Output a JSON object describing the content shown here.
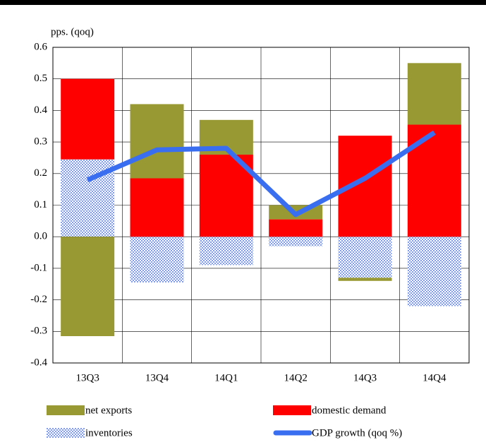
{
  "chart_data": {
    "type": "bar",
    "stacked": true,
    "y_axis_label": "pps. (qoq)",
    "categories": [
      "13Q3",
      "13Q4",
      "14Q1",
      "14Q2",
      "14Q3",
      "14Q4"
    ],
    "series": [
      {
        "name": "inventories",
        "color": "#8fa8f0",
        "pattern": "checker",
        "values": [
          0.245,
          -0.145,
          -0.09,
          -0.03,
          -0.13,
          -0.22
        ]
      },
      {
        "name": "domestic demand",
        "color": "#ff0000",
        "values": [
          0.255,
          0.185,
          0.26,
          0.055,
          0.32,
          0.355
        ]
      },
      {
        "name": "net exports",
        "color": "#999933",
        "values": [
          -0.315,
          0.235,
          0.11,
          0.045,
          -0.01,
          0.195
        ]
      },
      {
        "name": "GDP growth (qoq %)",
        "type": "line",
        "color": "#3a6ef0",
        "values": [
          0.18,
          0.275,
          0.28,
          0.07,
          0.185,
          0.33
        ]
      }
    ],
    "ylim": [
      -0.4,
      0.6
    ],
    "yticks": [
      -0.4,
      -0.3,
      -0.2,
      -0.1,
      {
        "value": 0,
        "label": "0.0"
      },
      0.1,
      0.2,
      0.3,
      0.4,
      0.5,
      0.6
    ],
    "grid": true
  }
}
